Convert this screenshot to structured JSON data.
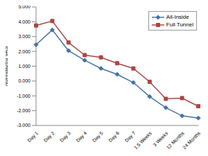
{
  "chart_data": {
    "type": "line",
    "y_label": "Normalized VAS",
    "categories": [
      "Day 1",
      "Day 2",
      "Day 3",
      "Day 4",
      "Day 5",
      "Day 6",
      "Day 7",
      "1.5 Weeks",
      "3 Weeks",
      "12 Months",
      "24 Months"
    ],
    "series": [
      {
        "name": "All-Inside",
        "color": "#4572a7",
        "marker": "diamond",
        "values": [
          2.45,
          3.45,
          2.05,
          1.4,
          0.85,
          0.45,
          -0.1,
          -1.05,
          -1.8,
          -2.35,
          -2.5
        ]
      },
      {
        "name": "Full Tunnel",
        "color": "#aa4643",
        "marker": "square",
        "values": [
          3.75,
          4.05,
          2.6,
          1.75,
          1.6,
          1.2,
          0.85,
          -0.05,
          -1.2,
          -1.15,
          -1.7
        ]
      }
    ],
    "ylim": [
      -3,
      5
    ],
    "yticks": [
      {
        "value": -3,
        "label": "-3.000"
      },
      {
        "value": -2,
        "label": "-2.000"
      },
      {
        "value": -1,
        "label": "-1.000"
      },
      {
        "value": 0,
        "label": "0.000"
      },
      {
        "value": 1,
        "label": "1.000"
      },
      {
        "value": 2,
        "label": "2.000"
      },
      {
        "value": 3,
        "label": "3.000"
      },
      {
        "value": 4,
        "label": "4.000"
      },
      {
        "value": 5,
        "label": "5.000"
      }
    ],
    "grid": false,
    "legend": "top-right"
  }
}
